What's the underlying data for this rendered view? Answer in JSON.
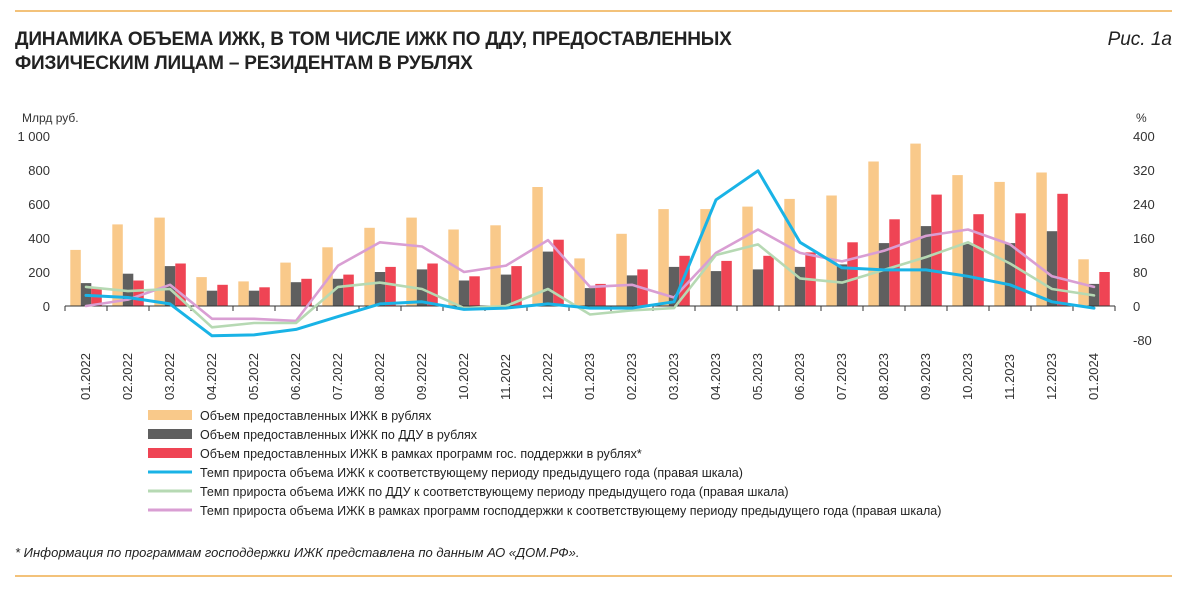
{
  "header": {
    "title_line1": "ДИНАМИКА ОБЪЕМА ИЖК, В ТОМ ЧИСЛЕ ИЖК ПО ДДУ, ПРЕДОСТАВЛЕННЫХ",
    "title_line2": "ФИЗИЧЕСКИМ ЛИЦАМ – РЕЗИДЕНТАМ В РУБЛЯХ",
    "figure_label": "Рис. 1а"
  },
  "footnote": "* Информация по программам господдержки ИЖК представлена по данным АО «ДОМ.РФ».",
  "colors": {
    "total": "#f9c98a",
    "ddu": "#5f5f5f",
    "gov": "#ef4454",
    "growth_total": "#19b3e6",
    "growth_ddu": "#b6d9b3",
    "growth_gov": "#d99ed3",
    "rule": "#f3c27a"
  },
  "chart_data": {
    "type": "bar",
    "categories": [
      "01.2022",
      "02.2022",
      "03.2022",
      "04.2022",
      "05.2022",
      "06.2022",
      "07.2022",
      "08.2022",
      "09.2022",
      "10.2022",
      "11.2022",
      "12.2022",
      "01.2023",
      "02.2023",
      "03.2023",
      "04.2023",
      "05.2023",
      "06.2023",
      "07.2023",
      "08.2023",
      "09.2023",
      "10.2023",
      "11.2023",
      "12.2023",
      "01.2024"
    ],
    "left_axis": {
      "unit": "Млрд руб.",
      "ylim": [
        0,
        1000
      ],
      "ticks": [
        "0",
        "200",
        "400",
        "600",
        "800",
        "1 000"
      ],
      "tick_values": [
        0,
        200,
        400,
        600,
        800,
        1000
      ]
    },
    "right_axis": {
      "unit": "%",
      "ylim": [
        -80,
        400
      ],
      "ticks": [
        "-80",
        "0",
        "80",
        "160",
        "240",
        "320",
        "400"
      ],
      "tick_values": [
        -80,
        0,
        80,
        160,
        240,
        320,
        400
      ]
    },
    "bar_series": [
      {
        "name": "Объем предоставленных ИЖК в рублях",
        "color_key": "total",
        "values": [
          330,
          480,
          520,
          170,
          145,
          255,
          345,
          460,
          520,
          450,
          475,
          700,
          280,
          425,
          570,
          570,
          585,
          630,
          650,
          850,
          955,
          770,
          730,
          785,
          275
        ]
      },
      {
        "name": "Объем предоставленных ИЖК по ДДУ в рублях",
        "color_key": "ddu",
        "values": [
          135,
          190,
          235,
          90,
          90,
          140,
          160,
          200,
          215,
          150,
          185,
          320,
          105,
          180,
          230,
          205,
          215,
          230,
          245,
          370,
          470,
          365,
          370,
          440,
          130
        ]
      },
      {
        "name": "Объем предоставленных ИЖК в рамках программ гос. поддержки в рублях*",
        "color_key": "gov",
        "values": [
          105,
          150,
          250,
          125,
          110,
          160,
          185,
          230,
          250,
          175,
          235,
          390,
          130,
          215,
          295,
          265,
          295,
          315,
          375,
          510,
          655,
          540,
          545,
          660,
          200
        ]
      }
    ],
    "line_series": [
      {
        "name": "Темп прироста объема ИЖК к соответствующему периоду предыдущего года (правая шкала)",
        "color_key": "growth_total",
        "values": [
          25,
          20,
          5,
          -70,
          -68,
          -55,
          -25,
          5,
          10,
          -8,
          -5,
          5,
          -5,
          -5,
          10,
          250,
          318,
          150,
          90,
          85,
          85,
          70,
          50,
          10,
          -5
        ]
      },
      {
        "name": "Темп прироста объема ИЖК по ДДУ к соответствующему периоду предыдущего года (правая шкала)",
        "color_key": "growth_ddu",
        "values": [
          45,
          35,
          40,
          -50,
          -40,
          -40,
          45,
          55,
          40,
          -5,
          0,
          40,
          -20,
          -10,
          -5,
          120,
          145,
          65,
          55,
          85,
          115,
          150,
          100,
          40,
          25
        ]
      },
      {
        "name": "Темп прироста объема ИЖК в рамках программ господдержки к соответствующему периоду предыдущего года (правая шкала)",
        "color_key": "growth_gov",
        "values": [
          0,
          15,
          50,
          -30,
          -30,
          -35,
          95,
          150,
          140,
          80,
          95,
          155,
          45,
          50,
          20,
          125,
          180,
          125,
          105,
          130,
          165,
          180,
          145,
          70,
          45
        ]
      }
    ],
    "legend_placement": "bottom",
    "grid": false
  }
}
